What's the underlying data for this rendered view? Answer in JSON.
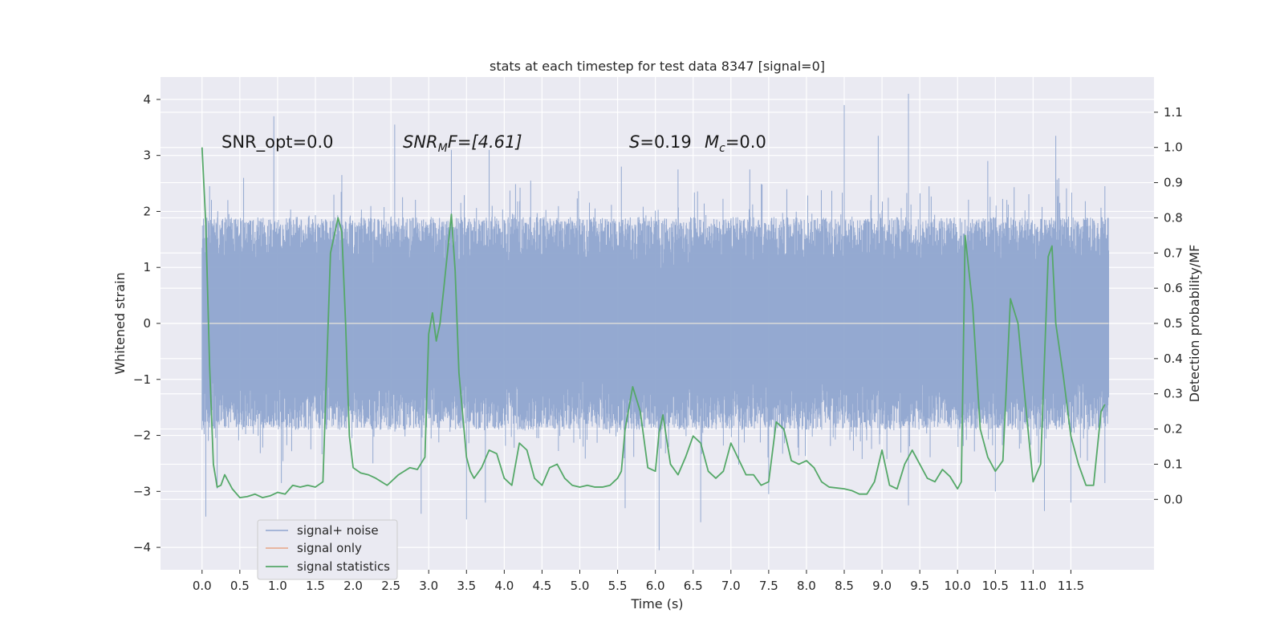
{
  "chart_data": {
    "type": "line",
    "title": "stats at each timestep for test data 8347 [signal=0]",
    "xlabel": "Time (s)",
    "ylabel": "Whitened strain",
    "y2label": "Detection probability/MF",
    "xlim": [
      -0.55,
      12.6
    ],
    "ylim": [
      -4.4,
      4.4
    ],
    "y2lim": [
      -0.2,
      1.2
    ],
    "x_ticks": [
      0.0,
      0.5,
      1.0,
      1.5,
      2.0,
      2.5,
      3.0,
      3.5,
      4.0,
      4.5,
      5.0,
      5.5,
      6.0,
      6.5,
      7.0,
      7.5,
      8.0,
      8.5,
      9.0,
      9.5,
      10.0,
      10.5,
      11.0,
      11.5
    ],
    "x_tick_labels": [
      "0.0",
      "0.5",
      "1.0",
      "1.5",
      "2.0",
      "2.5",
      "3.0",
      "3.5",
      "4.0",
      "4.5",
      "5.0",
      "5.5",
      "6.0",
      "6.5",
      "7.0",
      "7.5",
      "8.0",
      "8.5",
      "9.0",
      "9.5",
      "10.0",
      "10.5",
      "11.0",
      "11.5"
    ],
    "y_ticks": [
      4,
      3,
      2,
      1,
      0,
      -1,
      -2,
      -3,
      -4
    ],
    "y_tick_labels": [
      "4",
      "3",
      "2",
      "1",
      "0",
      "−1",
      "−2",
      "−3",
      "−4"
    ],
    "y2_ticks": [
      1.1,
      1.0,
      0.9,
      0.8,
      0.7,
      0.6,
      0.5,
      0.4,
      0.3,
      0.2,
      0.1,
      0.0
    ],
    "y2_tick_labels": [
      "1.1",
      "1.0",
      "0.9",
      "0.8",
      "0.7",
      "0.6",
      "0.5",
      "0.4",
      "0.3",
      "0.2",
      "0.1",
      "0.0"
    ],
    "grid": true,
    "legend_position": "lower-left",
    "series": [
      {
        "name": "signal+ noise",
        "color": "#8fa5cf",
        "kind": "noise",
        "x_range": [
          0.0,
          12.0
        ],
        "approx_band": [
          -1.9,
          1.9
        ],
        "peaks_high": [
          [
            0.1,
            2.45
          ],
          [
            0.55,
            2.6
          ],
          [
            0.95,
            3.7
          ],
          [
            1.85,
            2.65
          ],
          [
            2.55,
            3.55
          ],
          [
            3.3,
            3.1
          ],
          [
            3.8,
            3.1
          ],
          [
            4.35,
            2.55
          ],
          [
            5.55,
            2.8
          ],
          [
            6.3,
            2.75
          ],
          [
            7.25,
            2.75
          ],
          [
            8.5,
            3.9
          ],
          [
            8.95,
            3.35
          ],
          [
            9.35,
            4.1
          ],
          [
            10.4,
            2.9
          ],
          [
            11.3,
            3.35
          ],
          [
            11.95,
            2.45
          ]
        ],
        "peaks_low": [
          [
            0.05,
            -3.45
          ],
          [
            0.2,
            -2.95
          ],
          [
            1.05,
            -2.85
          ],
          [
            2.9,
            -3.4
          ],
          [
            3.5,
            -3.5
          ],
          [
            3.75,
            -3.2
          ],
          [
            5.6,
            -3.3
          ],
          [
            6.05,
            -4.05
          ],
          [
            6.6,
            -3.55
          ],
          [
            7.5,
            -3.05
          ],
          [
            9.35,
            -3.25
          ],
          [
            10.5,
            -3.0
          ],
          [
            11.15,
            -3.35
          ],
          [
            11.5,
            -3.2
          ],
          [
            11.95,
            -2.85
          ]
        ]
      },
      {
        "name": "signal only",
        "color": "#e7a486",
        "kind": "line",
        "x": [
          0.0,
          12.0
        ],
        "y": [
          0.0,
          0.0
        ]
      },
      {
        "name": "signal statistics",
        "color": "#55a868",
        "kind": "line",
        "axis": "y2",
        "x": [
          0.0,
          0.05,
          0.1,
          0.15,
          0.2,
          0.25,
          0.3,
          0.4,
          0.5,
          0.6,
          0.7,
          0.8,
          0.9,
          1.0,
          1.1,
          1.2,
          1.3,
          1.4,
          1.5,
          1.6,
          1.7,
          1.8,
          1.85,
          1.9,
          1.95,
          2.0,
          2.1,
          2.2,
          2.3,
          2.45,
          2.6,
          2.75,
          2.85,
          2.95,
          3.0,
          3.05,
          3.1,
          3.15,
          3.2,
          3.3,
          3.35,
          3.4,
          3.5,
          3.55,
          3.6,
          3.7,
          3.8,
          3.9,
          4.0,
          4.1,
          4.2,
          4.3,
          4.4,
          4.5,
          4.6,
          4.7,
          4.8,
          4.9,
          5.0,
          5.1,
          5.2,
          5.3,
          5.4,
          5.5,
          5.55,
          5.6,
          5.7,
          5.8,
          5.9,
          6.0,
          6.05,
          6.1,
          6.2,
          6.3,
          6.4,
          6.5,
          6.6,
          6.7,
          6.8,
          6.9,
          7.0,
          7.2,
          7.3,
          7.4,
          7.5,
          7.6,
          7.7,
          7.8,
          7.9,
          8.0,
          8.1,
          8.2,
          8.3,
          8.5,
          8.6,
          8.7,
          8.8,
          8.9,
          9.0,
          9.1,
          9.2,
          9.3,
          9.4,
          9.5,
          9.6,
          9.7,
          9.8,
          9.9,
          10.0,
          10.05,
          10.1,
          10.2,
          10.3,
          10.4,
          10.5,
          10.6,
          10.7,
          10.8,
          10.9,
          11.0,
          11.1,
          11.2,
          11.25,
          11.3,
          11.4,
          11.5,
          11.6,
          11.7,
          11.8,
          11.9,
          11.95
        ],
        "y": [
          1.0,
          0.78,
          0.38,
          0.1,
          0.035,
          0.04,
          0.07,
          0.03,
          0.005,
          0.008,
          0.015,
          0.005,
          0.01,
          0.02,
          0.015,
          0.04,
          0.035,
          0.04,
          0.035,
          0.05,
          0.7,
          0.8,
          0.76,
          0.5,
          0.18,
          0.09,
          0.075,
          0.07,
          0.06,
          0.04,
          0.07,
          0.09,
          0.085,
          0.12,
          0.47,
          0.53,
          0.45,
          0.5,
          0.6,
          0.81,
          0.65,
          0.36,
          0.12,
          0.08,
          0.06,
          0.09,
          0.14,
          0.13,
          0.06,
          0.04,
          0.16,
          0.14,
          0.06,
          0.04,
          0.09,
          0.1,
          0.06,
          0.04,
          0.035,
          0.04,
          0.035,
          0.035,
          0.04,
          0.06,
          0.08,
          0.2,
          0.32,
          0.25,
          0.09,
          0.08,
          0.19,
          0.24,
          0.1,
          0.07,
          0.12,
          0.18,
          0.16,
          0.08,
          0.06,
          0.08,
          0.16,
          0.07,
          0.07,
          0.04,
          0.05,
          0.22,
          0.2,
          0.11,
          0.1,
          0.11,
          0.09,
          0.05,
          0.035,
          0.03,
          0.025,
          0.015,
          0.015,
          0.05,
          0.14,
          0.04,
          0.03,
          0.1,
          0.14,
          0.1,
          0.06,
          0.05,
          0.085,
          0.065,
          0.03,
          0.05,
          0.75,
          0.55,
          0.2,
          0.12,
          0.08,
          0.11,
          0.57,
          0.5,
          0.27,
          0.05,
          0.1,
          0.69,
          0.72,
          0.5,
          0.35,
          0.18,
          0.1,
          0.04,
          0.04,
          0.25,
          0.27
        ]
      }
    ],
    "annotations": [
      {
        "id": "snr_opt",
        "text": "SNR_opt=0.0"
      },
      {
        "id": "snr_mf",
        "parts": [
          "SNR",
          "M",
          "F=[4.61]"
        ]
      },
      {
        "id": "s",
        "parts": [
          "S",
          "=0.19"
        ]
      },
      {
        "id": "mc",
        "parts": [
          "M",
          "c",
          "=0.0"
        ]
      }
    ]
  }
}
